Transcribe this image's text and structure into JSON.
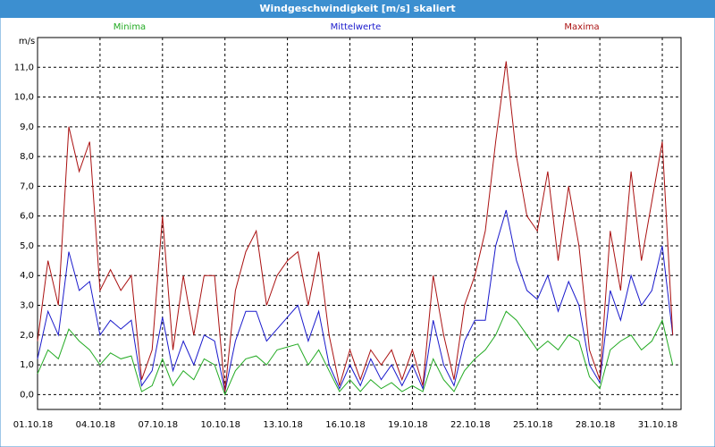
{
  "chart_data": {
    "type": "line",
    "title": "Windgeschwindigkeit [m/s] skaliert",
    "y_label": "m/s",
    "categories": [
      "01.10.18",
      null,
      null,
      null,
      null,
      null,
      "04.10.18",
      null,
      null,
      null,
      null,
      null,
      "07.10.18",
      null,
      null,
      null,
      null,
      null,
      "10.10.18",
      null,
      null,
      null,
      null,
      null,
      "13.10.18",
      null,
      null,
      null,
      null,
      null,
      "16.10.18",
      null,
      null,
      null,
      null,
      null,
      "19.10.18",
      null,
      null,
      null,
      null,
      null,
      "22.10.18",
      null,
      null,
      null,
      null,
      null,
      "25.10.18",
      null,
      null,
      null,
      null,
      null,
      "28.10.18",
      null,
      null,
      null,
      null,
      null,
      "31.10.18",
      null
    ],
    "series": [
      {
        "name": "Minima",
        "color": "#22aa22",
        "values": [
          0.7,
          1.5,
          1.2,
          2.2,
          1.8,
          1.5,
          1.0,
          1.4,
          1.2,
          1.3,
          0.1,
          0.3,
          1.2,
          0.3,
          0.8,
          0.5,
          1.2,
          1.0,
          0.0,
          0.8,
          1.2,
          1.3,
          1.0,
          1.5,
          1.6,
          1.7,
          1.0,
          1.5,
          0.8,
          0.1,
          0.5,
          0.1,
          0.5,
          0.2,
          0.4,
          0.1,
          0.3,
          0.1,
          1.2,
          0.5,
          0.1,
          0.8,
          1.2,
          1.5,
          2.0,
          2.8,
          2.5,
          2.0,
          1.5,
          1.8,
          1.5,
          2.0,
          1.8,
          0.6,
          0.2,
          1.5,
          1.8,
          2.0,
          1.5,
          1.8,
          2.5,
          1.0
        ]
      },
      {
        "name": "Mittelwerte",
        "color": "#1a1acc",
        "values": [
          1.2,
          2.8,
          2.0,
          4.8,
          3.5,
          3.8,
          2.0,
          2.5,
          2.2,
          2.5,
          0.3,
          0.8,
          2.6,
          0.8,
          1.8,
          1.0,
          2.0,
          1.8,
          0.1,
          1.8,
          2.8,
          2.8,
          1.8,
          2.2,
          2.6,
          3.0,
          1.8,
          2.8,
          1.0,
          0.2,
          1.0,
          0.3,
          1.2,
          0.5,
          1.0,
          0.3,
          1.0,
          0.2,
          2.5,
          1.0,
          0.3,
          1.8,
          2.5,
          2.5,
          5.0,
          6.2,
          4.5,
          3.5,
          3.2,
          4.0,
          2.8,
          3.8,
          3.0,
          1.0,
          0.4,
          3.5,
          2.5,
          4.0,
          3.0,
          3.5,
          5.0,
          2.0
        ]
      },
      {
        "name": "Maxima",
        "color": "#aa1111",
        "values": [
          1.8,
          4.5,
          3.0,
          9.0,
          7.5,
          8.5,
          3.5,
          4.2,
          3.5,
          4.0,
          0.5,
          1.5,
          6.0,
          1.5,
          4.0,
          2.0,
          4.0,
          4.0,
          0.1,
          3.5,
          4.8,
          5.5,
          3.0,
          4.0,
          4.5,
          4.8,
          3.0,
          4.8,
          2.0,
          0.3,
          1.5,
          0.5,
          1.5,
          1.0,
          1.5,
          0.5,
          1.5,
          0.3,
          4.0,
          2.0,
          0.5,
          3.0,
          4.0,
          5.5,
          8.5,
          11.2,
          8.0,
          6.0,
          5.5,
          7.5,
          4.5,
          7.0,
          5.0,
          1.5,
          0.5,
          5.5,
          3.5,
          7.5,
          4.5,
          6.5,
          8.5,
          2.0
        ]
      }
    ],
    "ylim": [
      -0.5,
      12
    ],
    "yticks": [
      {
        "value": 0,
        "label": "0,0"
      },
      {
        "value": 1,
        "label": "1,0"
      },
      {
        "value": 2,
        "label": "2,0"
      },
      {
        "value": 3,
        "label": "3,0"
      },
      {
        "value": 4,
        "label": "4,0"
      },
      {
        "value": 5,
        "label": "5,0"
      },
      {
        "value": 6,
        "label": "6,0"
      },
      {
        "value": 7,
        "label": "7,0"
      },
      {
        "value": 8,
        "label": "8,0"
      },
      {
        "value": 9,
        "label": "9,0"
      },
      {
        "value": 10,
        "label": "10,0"
      },
      {
        "value": 11,
        "label": "11,0"
      }
    ],
    "grid": true
  }
}
